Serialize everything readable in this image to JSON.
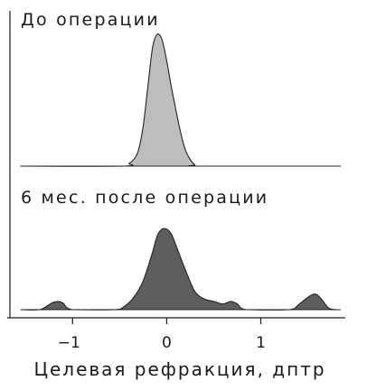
{
  "colors": {
    "axis": "#1a1a1a",
    "pre_fill": "#bdbdbd",
    "post_fill": "#5e5e5e",
    "outline": "#222222"
  },
  "chart_data": {
    "type": "area",
    "xlabel": "Целевая рефракция, дптр",
    "xlim": [
      -1.55,
      1.85
    ],
    "x_ticks": [
      {
        "value": -1,
        "label": "−1"
      },
      {
        "value": 0,
        "label": "0"
      },
      {
        "value": 1,
        "label": "1"
      }
    ],
    "grid": false,
    "panels": [
      {
        "name": "До операции",
        "ylim": [
          0,
          1
        ],
        "fill": "#bdbdbd",
        "x": [
          -1.55,
          -0.45,
          -0.4,
          -0.35,
          -0.3,
          -0.25,
          -0.2,
          -0.15,
          -0.1,
          -0.05,
          0.0,
          0.05,
          0.1,
          0.15,
          0.2,
          0.25,
          0.3,
          0.35,
          1.8
        ],
        "values": [
          0.0,
          0.0,
          0.02,
          0.05,
          0.12,
          0.3,
          0.6,
          0.9,
          1.0,
          0.96,
          0.8,
          0.6,
          0.42,
          0.25,
          0.12,
          0.05,
          0.01,
          0.0,
          0.0
        ]
      },
      {
        "name": "6 мес. после операции",
        "ylim": [
          0,
          1
        ],
        "fill": "#5e5e5e",
        "x": [
          -1.55,
          -1.35,
          -1.25,
          -1.2,
          -1.15,
          -1.1,
          -1.0,
          -0.55,
          -0.45,
          -0.35,
          -0.25,
          -0.15,
          -0.1,
          -0.05,
          0.0,
          0.05,
          0.1,
          0.2,
          0.3,
          0.4,
          0.5,
          0.6,
          0.68,
          0.75,
          0.85,
          1.3,
          1.4,
          1.5,
          1.58,
          1.65,
          1.72,
          1.8
        ],
        "values": [
          0.0,
          0.0,
          0.06,
          0.09,
          0.1,
          0.08,
          0.0,
          0.0,
          0.04,
          0.15,
          0.35,
          0.7,
          0.9,
          0.98,
          0.98,
          0.92,
          0.78,
          0.48,
          0.22,
          0.13,
          0.1,
          0.07,
          0.1,
          0.07,
          0.0,
          0.0,
          0.06,
          0.15,
          0.19,
          0.12,
          0.02,
          0.0
        ]
      }
    ]
  }
}
